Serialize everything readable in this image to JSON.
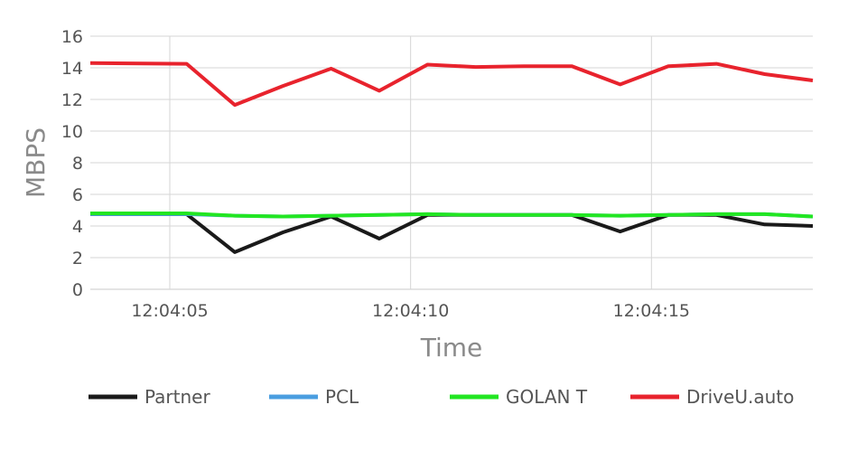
{
  "chart_data": {
    "type": "line",
    "title": "",
    "xlabel": "Time",
    "ylabel": "MBPS",
    "ylim": [
      0,
      16
    ],
    "yticks": [
      0,
      2,
      4,
      6,
      8,
      10,
      12,
      14,
      16
    ],
    "xrange": [
      "12:04:03.35",
      "12:04:18.35"
    ],
    "xticks": [
      "12:04:05",
      "12:04:10",
      "12:04:15"
    ],
    "grid": true,
    "legend_position": "bottom",
    "x": [
      "12:04:03.35",
      "12:04:05.35",
      "12:04:06.35",
      "12:04:07.35",
      "12:04:08.35",
      "12:04:09.35",
      "12:04:10.35",
      "12:04:11.35",
      "12:04:12.35",
      "12:04:13.35",
      "12:04:14.35",
      "12:04:15.35",
      "12:04:16.35",
      "12:04:17.35",
      "12:04:18.35"
    ],
    "series": [
      {
        "name": "Partner",
        "color": "#1a1a1a",
        "values": [
          4.75,
          4.75,
          2.35,
          3.6,
          4.6,
          3.2,
          4.7,
          4.7,
          4.7,
          4.7,
          3.65,
          4.7,
          4.7,
          4.1,
          4.0
        ]
      },
      {
        "name": "PCL",
        "color": "#4a9ee0",
        "values": [
          4.75,
          4.75,
          4.65,
          4.6,
          4.65,
          4.7,
          4.75,
          4.7,
          4.7,
          4.7,
          4.65,
          4.7,
          4.75,
          4.75,
          4.6
        ]
      },
      {
        "name": "GOLAN T",
        "color": "#22e622",
        "values": [
          4.8,
          4.8,
          4.65,
          4.6,
          4.65,
          4.7,
          4.75,
          4.7,
          4.7,
          4.7,
          4.65,
          4.7,
          4.75,
          4.75,
          4.6
        ]
      },
      {
        "name": "DriveU.auto",
        "color": "#e8232d",
        "values": [
          14.3,
          14.25,
          11.65,
          12.85,
          13.95,
          12.55,
          14.2,
          14.05,
          14.1,
          14.1,
          12.95,
          14.1,
          14.25,
          13.6,
          13.2
        ]
      }
    ]
  }
}
